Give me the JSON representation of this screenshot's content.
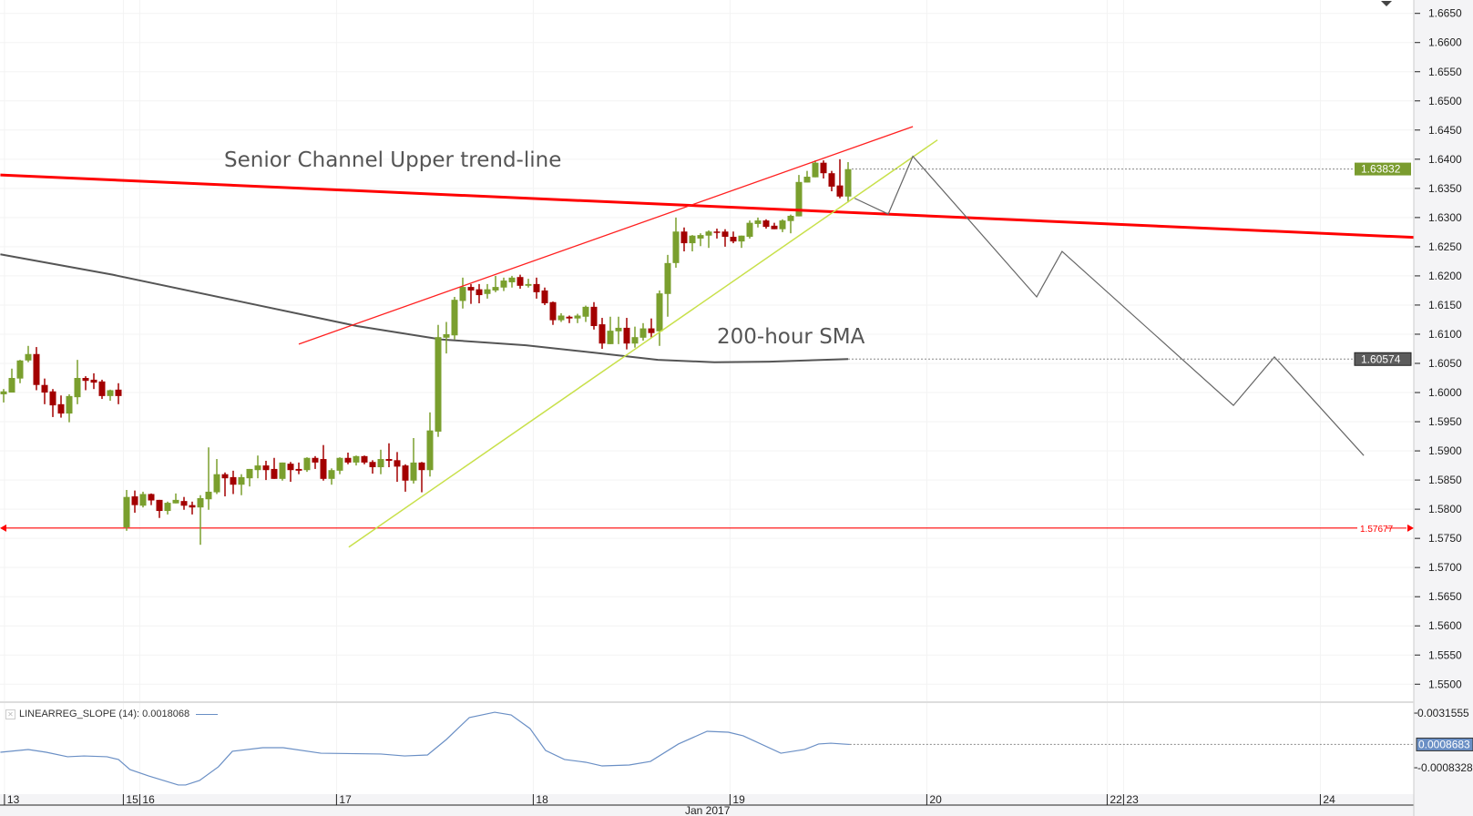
{
  "chart_data": [
    {
      "type": "candlestick",
      "y_axis": {
        "ylim": [
          1.546,
          1.6673
        ],
        "ticks": [
          "1.6650",
          "1.6600",
          "1.6550",
          "1.6500",
          "1.6450",
          "1.6400",
          "1.6350",
          "1.6300",
          "1.6250",
          "1.6200",
          "1.6150",
          "1.6100",
          "1.6050",
          "1.6000",
          "1.5950",
          "1.5900",
          "1.5850",
          "1.5800",
          "1.5750",
          "1.5700",
          "1.5650",
          "1.5600",
          "1.5550",
          "1.5500"
        ]
      },
      "x_axis": {
        "unit": "hourly bars",
        "ticks": [
          {
            "label": "13",
            "at": 0.1
          },
          {
            "label": "15",
            "at": 14.6
          },
          {
            "label": "16",
            "at": 16.6
          },
          {
            "label": "17",
            "at": 40.6
          },
          {
            "label": "18",
            "at": 64.6
          },
          {
            "label": "19",
            "at": 88.6
          },
          {
            "label": "20",
            "at": 112.6
          },
          {
            "label": "22",
            "at": 134.6
          },
          {
            "label": "23",
            "at": 136.6
          },
          {
            "label": "24",
            "at": 160.6
          }
        ],
        "month_label": "Jan 2017"
      },
      "candles_ohlc": [
        [
          1.5997,
          1.6006,
          1.5983,
          1.6002
        ],
        [
          1.6,
          1.6041,
          1.6,
          1.6025
        ],
        [
          1.6024,
          1.6056,
          1.6016,
          1.6055
        ],
        [
          1.6055,
          1.608,
          1.6052,
          1.6066
        ],
        [
          1.6066,
          1.6078,
          1.6004,
          1.6013
        ],
        [
          1.6013,
          1.6024,
          1.598,
          1.6
        ],
        [
          1.6002,
          1.6006,
          1.5958,
          1.5978
        ],
        [
          1.598,
          1.5995,
          1.5957,
          1.5964
        ],
        [
          1.5964,
          1.5997,
          1.5949,
          1.5994
        ],
        [
          1.5992,
          1.6056,
          1.598,
          1.6025
        ],
        [
          1.6025,
          1.6028,
          1.6004,
          1.602
        ],
        [
          1.6022,
          1.6033,
          1.6006,
          1.6017
        ],
        [
          1.6019,
          1.6022,
          1.5989,
          1.5994
        ],
        [
          1.5994,
          1.6005,
          1.5986,
          1.6004
        ],
        [
          1.6005,
          1.6016,
          1.598,
          1.5994
        ],
        [
          1.5769,
          1.5833,
          1.5763,
          1.5821
        ],
        [
          1.5822,
          1.5832,
          1.5794,
          1.5807
        ],
        [
          1.5806,
          1.583,
          1.5803,
          1.5826
        ],
        [
          1.5826,
          1.5827,
          1.5807,
          1.5815
        ],
        [
          1.5816,
          1.5816,
          1.5785,
          1.5797
        ],
        [
          1.5797,
          1.5813,
          1.5791,
          1.5811
        ],
        [
          1.581,
          1.5827,
          1.581,
          1.5816
        ],
        [
          1.5814,
          1.5821,
          1.5799,
          1.5806
        ],
        [
          1.5807,
          1.5813,
          1.5791,
          1.5803
        ],
        [
          1.5803,
          1.5824,
          1.5739,
          1.5819
        ],
        [
          1.5817,
          1.5906,
          1.5799,
          1.583
        ],
        [
          1.5829,
          1.5886,
          1.5826,
          1.586
        ],
        [
          1.586,
          1.5863,
          1.5822,
          1.5853
        ],
        [
          1.5855,
          1.5866,
          1.5826,
          1.5842
        ],
        [
          1.5842,
          1.586,
          1.5824,
          1.5855
        ],
        [
          1.5853,
          1.5869,
          1.5839,
          1.5869
        ],
        [
          1.5867,
          1.5892,
          1.5853,
          1.5875
        ],
        [
          1.5875,
          1.5883,
          1.585,
          1.5867
        ],
        [
          1.5869,
          1.5888,
          1.5852,
          1.5852
        ],
        [
          1.5852,
          1.588,
          1.5849,
          1.588
        ],
        [
          1.5878,
          1.5881,
          1.5847,
          1.5867
        ],
        [
          1.5869,
          1.588,
          1.586,
          1.5866
        ],
        [
          1.5867,
          1.5889,
          1.5864,
          1.5888
        ],
        [
          1.5888,
          1.5891,
          1.5869,
          1.588
        ],
        [
          1.5886,
          1.591,
          1.5849,
          1.5852
        ],
        [
          1.5852,
          1.587,
          1.5842,
          1.5867
        ],
        [
          1.5866,
          1.5889,
          1.586,
          1.5888
        ],
        [
          1.5888,
          1.5897,
          1.5877,
          1.588
        ],
        [
          1.588,
          1.5892,
          1.5875,
          1.5891
        ],
        [
          1.5891,
          1.5892,
          1.5877,
          1.588
        ],
        [
          1.5881,
          1.5884,
          1.5861,
          1.5872
        ],
        [
          1.5872,
          1.5902,
          1.586,
          1.5886
        ],
        [
          1.5886,
          1.5913,
          1.5872,
          1.5883
        ],
        [
          1.5884,
          1.5898,
          1.5847,
          1.5873
        ],
        [
          1.5875,
          1.5877,
          1.583,
          1.5849
        ],
        [
          1.5849,
          1.5922,
          1.5844,
          1.588
        ],
        [
          1.588,
          1.5881,
          1.5829,
          1.5867
        ],
        [
          1.5867,
          1.5966,
          1.5856,
          1.5935
        ],
        [
          1.5933,
          1.6116,
          1.5924,
          1.6095
        ],
        [
          1.6094,
          1.6121,
          1.6067,
          1.61
        ],
        [
          1.6098,
          1.6164,
          1.6091,
          1.6159
        ],
        [
          1.6157,
          1.6197,
          1.6144,
          1.6181
        ],
        [
          1.6181,
          1.6186,
          1.6152,
          1.6175
        ],
        [
          1.6177,
          1.6186,
          1.6153,
          1.6167
        ],
        [
          1.6169,
          1.6186,
          1.6161,
          1.6177
        ],
        [
          1.6175,
          1.62,
          1.6172,
          1.6181
        ],
        [
          1.618,
          1.6197,
          1.6174,
          1.6192
        ],
        [
          1.6189,
          1.62,
          1.618,
          1.6197
        ],
        [
          1.6198,
          1.6202,
          1.6178,
          1.6183
        ],
        [
          1.6183,
          1.6195,
          1.618,
          1.6186
        ],
        [
          1.6186,
          1.6197,
          1.6161,
          1.6172
        ],
        [
          1.6175,
          1.618,
          1.615,
          1.6153
        ],
        [
          1.6155,
          1.6156,
          1.6116,
          1.6124
        ],
        [
          1.6124,
          1.6136,
          1.6121,
          1.6132
        ],
        [
          1.613,
          1.6132,
          1.6119,
          1.6127
        ],
        [
          1.6127,
          1.6135,
          1.6119,
          1.6132
        ],
        [
          1.613,
          1.6149,
          1.6121,
          1.6147
        ],
        [
          1.6147,
          1.6155,
          1.6108,
          1.6114
        ],
        [
          1.6117,
          1.6128,
          1.6075,
          1.6084
        ],
        [
          1.6083,
          1.613,
          1.6083,
          1.6106
        ],
        [
          1.6105,
          1.613,
          1.6083,
          1.6111
        ],
        [
          1.6111,
          1.6128,
          1.6074,
          1.6084
        ],
        [
          1.6084,
          1.6113,
          1.6077,
          1.6095
        ],
        [
          1.6094,
          1.6119,
          1.6089,
          1.611
        ],
        [
          1.611,
          1.6127,
          1.6094,
          1.6102
        ],
        [
          1.6105,
          1.6175,
          1.608,
          1.617
        ],
        [
          1.6169,
          1.6236,
          1.613,
          1.6222
        ],
        [
          1.6222,
          1.63,
          1.6214,
          1.6276
        ],
        [
          1.6276,
          1.6283,
          1.6242,
          1.6256
        ],
        [
          1.6256,
          1.627,
          1.6242,
          1.6269
        ],
        [
          1.6264,
          1.6273,
          1.6251,
          1.627
        ],
        [
          1.6269,
          1.6278,
          1.6248,
          1.6276
        ],
        [
          1.6276,
          1.6281,
          1.6264,
          1.6275
        ],
        [
          1.6276,
          1.628,
          1.625,
          1.6267
        ],
        [
          1.6267,
          1.6276,
          1.6256,
          1.6259
        ],
        [
          1.6259,
          1.6269,
          1.6248,
          1.6269
        ],
        [
          1.6267,
          1.6295,
          1.6264,
          1.6291
        ],
        [
          1.6289,
          1.63,
          1.6283,
          1.6295
        ],
        [
          1.6295,
          1.6297,
          1.6281,
          1.6284
        ],
        [
          1.6286,
          1.6291,
          1.628,
          1.628
        ],
        [
          1.628,
          1.6297,
          1.6275,
          1.6295
        ],
        [
          1.6294,
          1.6305,
          1.6273,
          1.6303
        ],
        [
          1.6302,
          1.6373,
          1.6302,
          1.6361
        ],
        [
          1.636,
          1.638,
          1.636,
          1.637
        ],
        [
          1.6369,
          1.6398,
          1.6369,
          1.6394
        ],
        [
          1.6394,
          1.6398,
          1.6367,
          1.6376
        ],
        [
          1.6376,
          1.638,
          1.6345,
          1.6353
        ],
        [
          1.6355,
          1.64,
          1.6333,
          1.6336
        ],
        [
          1.6336,
          1.6395,
          1.6326,
          1.6383
        ]
      ],
      "last_price": {
        "label": "1.63832",
        "value": 1.63832,
        "color": "#7a9c2f"
      },
      "sma": {
        "label_value": "1.60574",
        "value": 1.60574,
        "color": "#555555",
        "points": [
          [
            -0.4,
            1.6237
          ],
          [
            13.3,
            1.6202
          ],
          [
            28.2,
            1.6158
          ],
          [
            43.1,
            1.6114
          ],
          [
            53.4,
            1.6091
          ],
          [
            63.7,
            1.6081
          ],
          [
            72.9,
            1.6067
          ],
          [
            79.8,
            1.6056
          ],
          [
            86.7,
            1.6052
          ],
          [
            93.4,
            1.6053
          ],
          [
            103,
            1.60574
          ]
        ]
      },
      "senior_channel_line": {
        "color": "#ff0000",
        "points": [
          [
            -0.4,
            1.6373
          ],
          [
            172,
            1.6266
          ]
        ]
      },
      "upper_channel_line": {
        "color": "#ff2020",
        "points": [
          [
            36,
            1.6083
          ],
          [
            110.9,
            1.6456
          ]
        ]
      },
      "support_trend_line": {
        "color": "#c8e04a",
        "points": [
          [
            42.1,
            1.5735
          ],
          [
            113.9,
            1.6433
          ]
        ]
      },
      "projection_path": {
        "color": "#666666",
        "points": [
          [
            103.8,
            1.6333
          ],
          [
            107.9,
            1.6306
          ],
          [
            110.9,
            1.6405
          ],
          [
            126,
            1.6164
          ],
          [
            129.1,
            1.6242
          ],
          [
            150,
            1.5978
          ],
          [
            155,
            1.6061
          ],
          [
            165.9,
            1.5892
          ]
        ]
      },
      "horizontal_level": {
        "label": "1.57677",
        "value": 1.57677,
        "color": "#ff0000"
      },
      "annotations": [
        {
          "text": "Senior Channel Upper trend-line",
          "at": [
            26.9,
            1.6402
          ]
        },
        {
          "text": "200-hour SMA",
          "at": [
            86.9,
            1.6107
          ]
        }
      ],
      "colors": {
        "up": "#7a9f2e",
        "down": "#a30000"
      },
      "grid": true
    },
    {
      "type": "line",
      "legend": "LINEARREG_SLOPE (14): 0.0018068",
      "color": "#6a8fc5",
      "y_ticks": [
        "0.0031555",
        "-0.0008328"
      ],
      "last_value": {
        "label": "0.0008683",
        "value": 0.0008683
      },
      "points": [
        [
          -0.4,
          0.0003
        ],
        [
          3,
          0.0005
        ],
        [
          5.2,
          0.0003
        ],
        [
          7.8,
          -3e-05
        ],
        [
          9.8,
          3e-05
        ],
        [
          12.6,
          -3e-05
        ],
        [
          14,
          -0.00023
        ],
        [
          15.4,
          -0.00096
        ],
        [
          17.7,
          -0.00143
        ],
        [
          21.3,
          -0.00209
        ],
        [
          22.2,
          -0.00209
        ],
        [
          23.9,
          -0.00176
        ],
        [
          26.2,
          -0.00076
        ],
        [
          27.9,
          0.00037
        ],
        [
          31.6,
          0.00063
        ],
        [
          34.1,
          0.00063
        ],
        [
          38.7,
          0.00023
        ],
        [
          46,
          0.00017
        ],
        [
          48.9,
          3e-05
        ],
        [
          51.7,
          0.0001
        ],
        [
          54,
          0.00123
        ],
        [
          56.8,
          0.00283
        ],
        [
          59.9,
          0.00322
        ],
        [
          61.9,
          0.00302
        ],
        [
          64.2,
          0.00203
        ],
        [
          66.1,
          0.00043
        ],
        [
          68.4,
          -0.00023
        ],
        [
          71,
          -0.00043
        ],
        [
          73,
          -0.0007
        ],
        [
          76.3,
          -0.00063
        ],
        [
          78.9,
          -0.00037
        ],
        [
          82.3,
          0.0009
        ],
        [
          85.8,
          0.00183
        ],
        [
          88.4,
          0.00176
        ],
        [
          90.2,
          0.0015
        ],
        [
          94.8,
          0.00023
        ],
        [
          97.7,
          0.0005
        ],
        [
          99.4,
          0.0009
        ],
        [
          100.9,
          0.00096
        ],
        [
          102.3,
          0.0009
        ],
        [
          103.2,
          0.0008683
        ]
      ]
    }
  ]
}
